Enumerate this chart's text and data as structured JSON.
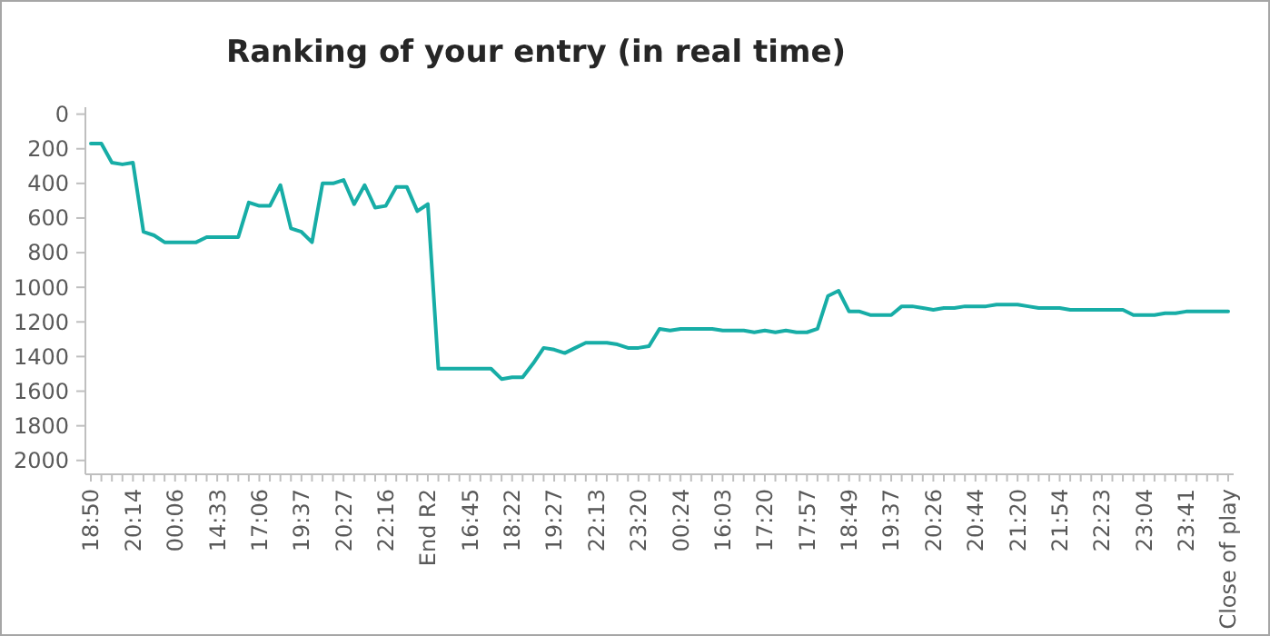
{
  "chart_data": {
    "type": "line",
    "title": "Ranking of your entry (in real time)",
    "categories": [
      "18:50",
      null,
      null,
      null,
      "20:14",
      null,
      null,
      null,
      "00:06",
      null,
      null,
      null,
      "14:33",
      null,
      null,
      null,
      "17:06",
      null,
      null,
      null,
      "19:37",
      null,
      null,
      null,
      "20:27",
      null,
      null,
      null,
      "22:16",
      null,
      null,
      null,
      "End R2",
      null,
      null,
      null,
      "16:45",
      null,
      null,
      null,
      "18:22",
      null,
      null,
      null,
      "19:27",
      null,
      null,
      null,
      "22:13",
      null,
      null,
      null,
      "23:20",
      null,
      null,
      null,
      "00:24",
      null,
      null,
      null,
      "16:03",
      null,
      null,
      null,
      "17:20",
      null,
      null,
      null,
      "17:57",
      null,
      null,
      null,
      "18:49",
      null,
      null,
      null,
      "19:37",
      null,
      null,
      null,
      "20:26",
      null,
      null,
      null,
      "20:44",
      null,
      null,
      null,
      "21:20",
      null,
      null,
      null,
      "21:54",
      null,
      null,
      null,
      "22:23",
      null,
      null,
      null,
      "23:04",
      null,
      null,
      null,
      "23:41",
      null,
      null,
      null,
      "Close of play"
    ],
    "series": [
      {
        "color": "#17ada6",
        "values": [
          170,
          170,
          280,
          290,
          280,
          680,
          700,
          740,
          740,
          740,
          740,
          710,
          710,
          710,
          710,
          510,
          530,
          530,
          410,
          660,
          680,
          740,
          400,
          400,
          380,
          520,
          410,
          540,
          530,
          420,
          420,
          560,
          520,
          1470,
          1470,
          1470,
          1470,
          1470,
          1470,
          1530,
          1520,
          1520,
          1440,
          1350,
          1360,
          1380,
          1350,
          1320,
          1320,
          1320,
          1330,
          1350,
          1350,
          1340,
          1240,
          1250,
          1240,
          1240,
          1240,
          1240,
          1250,
          1250,
          1250,
          1260,
          1250,
          1260,
          1250,
          1260,
          1260,
          1240,
          1050,
          1020,
          1140,
          1140,
          1160,
          1160,
          1160,
          1110,
          1110,
          1120,
          1130,
          1120,
          1120,
          1110,
          1110,
          1110,
          1100,
          1100,
          1100,
          1110,
          1120,
          1120,
          1120,
          1130,
          1130,
          1130,
          1130,
          1130,
          1130,
          1160,
          1160,
          1160,
          1150,
          1150,
          1140,
          1140,
          1140,
          1140,
          1140
        ]
      }
    ],
    "ylim": [
      2080,
      -40
    ],
    "yticks": [
      0,
      200,
      400,
      600,
      800,
      1000,
      1200,
      1400,
      1600,
      1800,
      2000
    ],
    "grid": false,
    "marker": "none",
    "line_style": "solid"
  }
}
